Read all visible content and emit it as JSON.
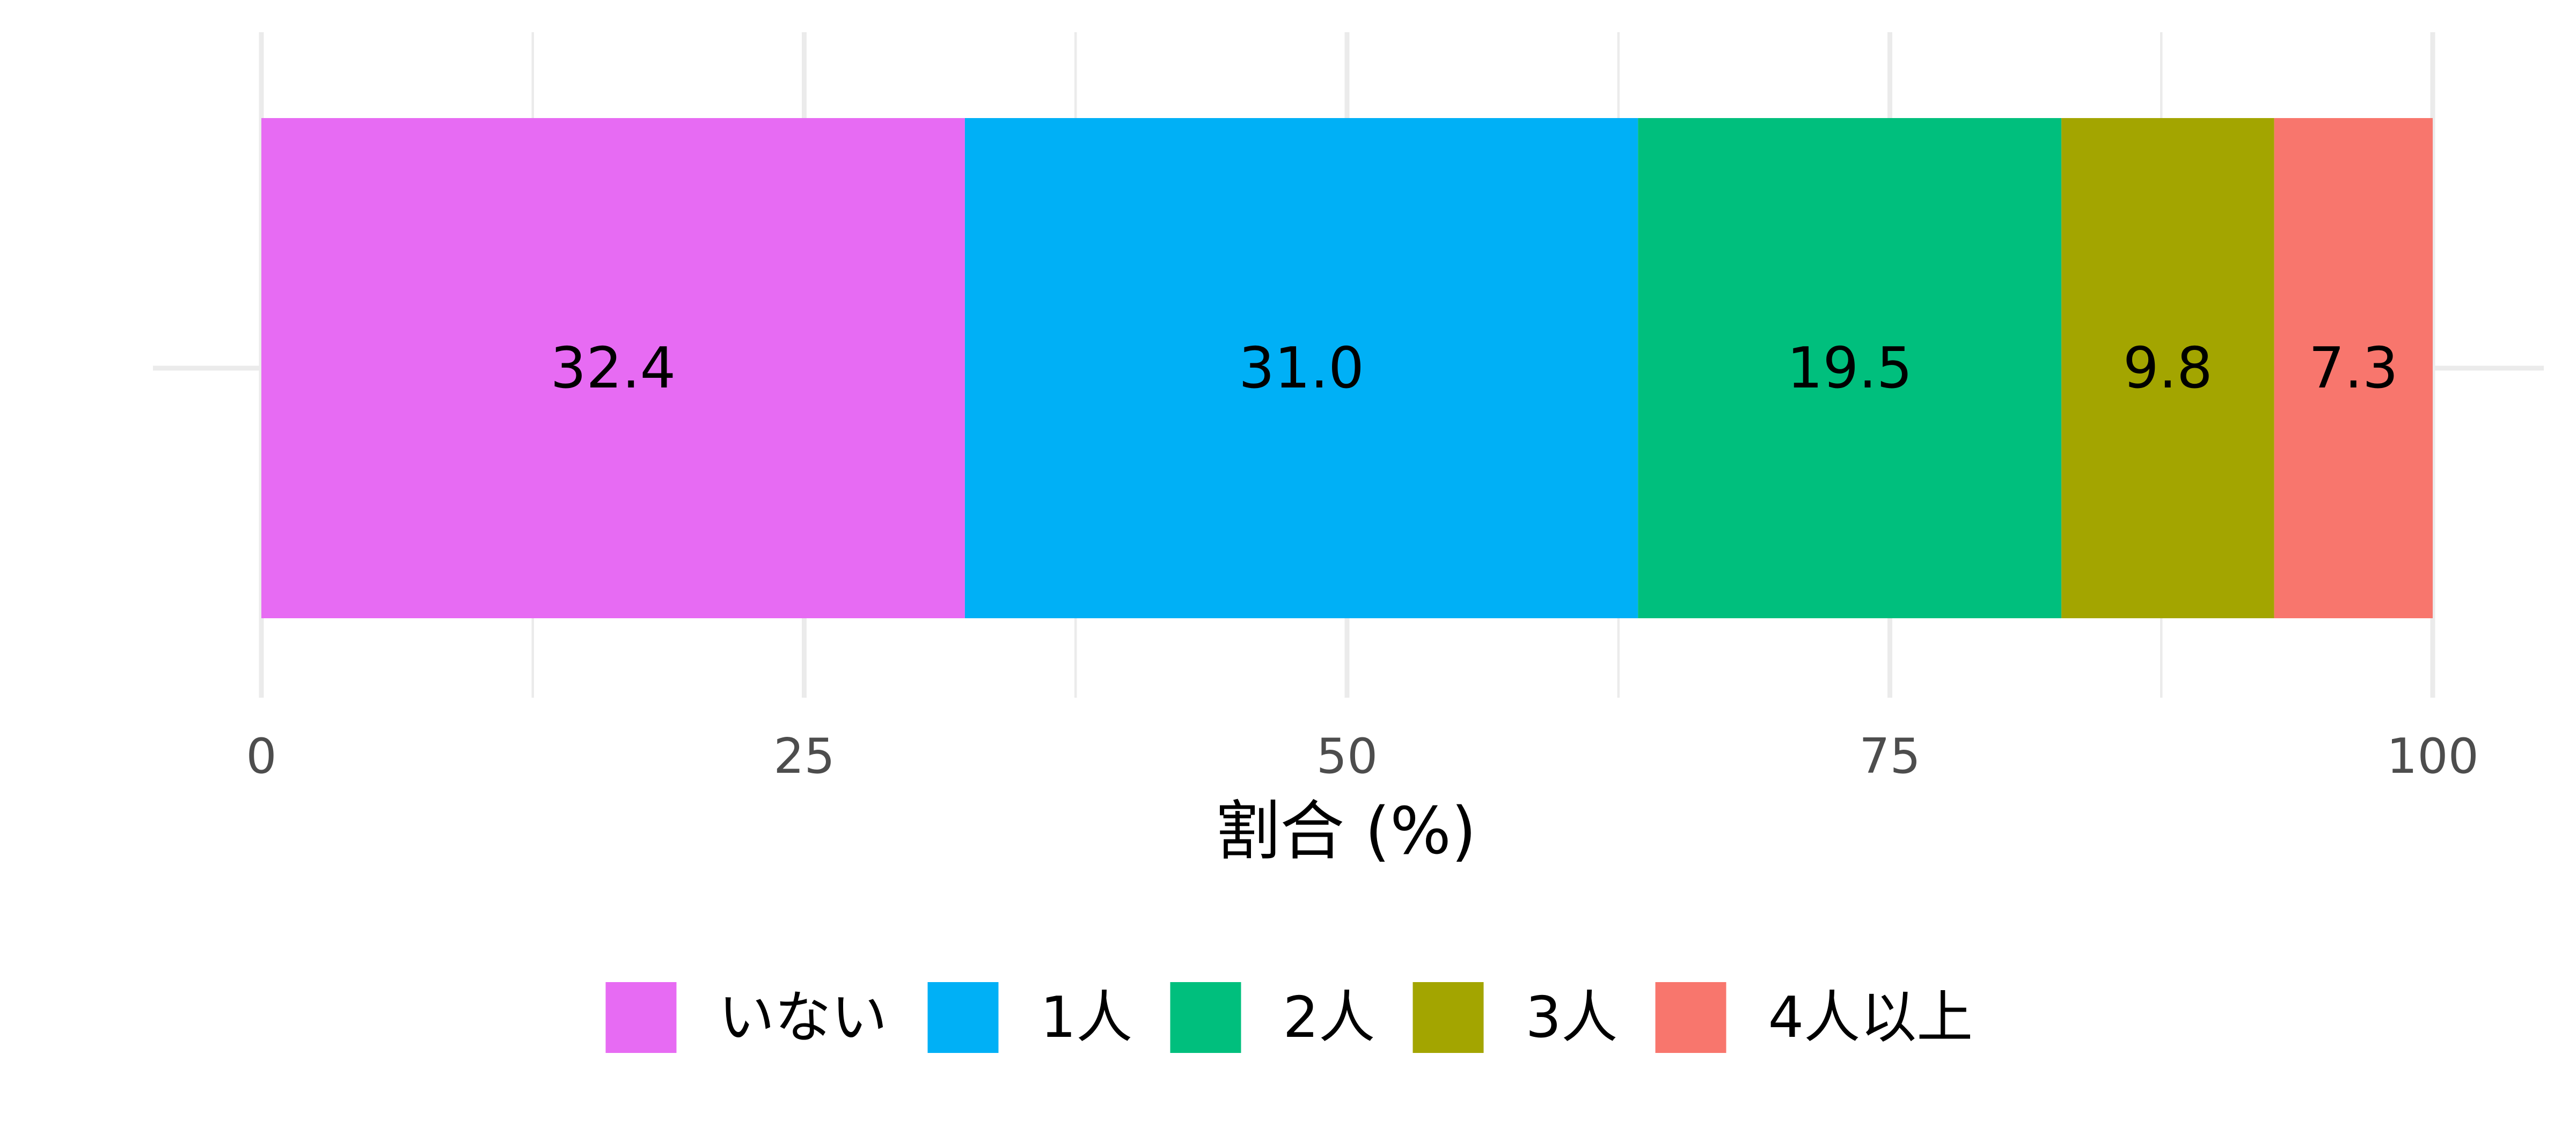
{
  "chart_data": {
    "type": "bar",
    "orientation": "horizontal",
    "stacked": true,
    "x": {
      "label": "割合 (%)",
      "lim": [
        0,
        100
      ],
      "ticks": [
        0,
        25,
        50,
        75,
        100
      ],
      "tick_labels": [
        "0",
        "25",
        "50",
        "75",
        "100"
      ]
    },
    "grid": true,
    "legend_position": "bottom",
    "segments": [
      {
        "name": "いない",
        "value": 32.4,
        "label": "32.4",
        "color": "#E76BF3"
      },
      {
        "name": "1人",
        "value": 31.0,
        "label": "31.0",
        "color": "#00B0F6"
      },
      {
        "name": "2人",
        "value": 19.5,
        "label": "19.5",
        "color": "#00BF7D"
      },
      {
        "name": "3人",
        "value": 9.8,
        "label": "9.8",
        "color": "#A3A500"
      },
      {
        "name": "4人以上",
        "value": 7.3,
        "label": "7.3",
        "color": "#F8766D"
      }
    ]
  }
}
